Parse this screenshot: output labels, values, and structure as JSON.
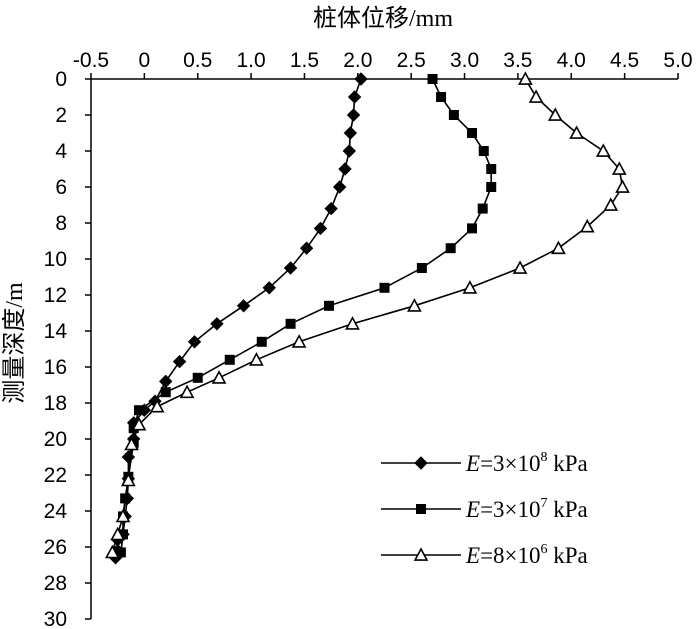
{
  "chart_data": {
    "type": "line",
    "xlabel": "桩体位移/mm",
    "ylabel": "测量深度/m",
    "xlim": [
      -0.5,
      5.0
    ],
    "ylim": [
      0,
      30
    ],
    "y_inverted": true,
    "x_axis_position": "top",
    "x_ticks": [
      "-0.5",
      "0",
      "0.5",
      "1.0",
      "1.5",
      "2.0",
      "2.5",
      "3.0",
      "3.5",
      "4.0",
      "4.5",
      "5.0"
    ],
    "y_ticks": [
      "0",
      "2",
      "4",
      "6",
      "8",
      "10",
      "12",
      "14",
      "16",
      "18",
      "20",
      "22",
      "24",
      "26",
      "28",
      "30"
    ],
    "grid": false,
    "legend_position": "bottom-right",
    "series": [
      {
        "name": "E=3×10^8 kPa",
        "legend": {
          "prefix": "E",
          "mid": "=3×10",
          "exp": "8",
          "suffix": " kPa"
        },
        "marker": "diamond",
        "x": [
          2.03,
          1.97,
          1.96,
          1.93,
          1.92,
          1.88,
          1.83,
          1.75,
          1.65,
          1.52,
          1.37,
          1.17,
          0.93,
          0.68,
          0.47,
          0.33,
          0.2,
          0.1,
          0.0,
          -0.1,
          -0.1,
          -0.15,
          -0.15,
          -0.16,
          -0.18,
          -0.2,
          -0.25,
          -0.25,
          -0.27
        ],
        "y": [
          0.0,
          1.0,
          2.0,
          3.0,
          4.0,
          5.0,
          6.0,
          7.2,
          8.3,
          9.4,
          10.5,
          11.6,
          12.6,
          13.6,
          14.6,
          15.7,
          16.8,
          17.9,
          18.4,
          19.1,
          20.0,
          21.0,
          22.2,
          23.3,
          24.3,
          25.3,
          25.6,
          26.2,
          26.6
        ]
      },
      {
        "name": "E=3×10^7 kPa",
        "legend": {
          "prefix": "E",
          "mid": "=3×10",
          "exp": "7",
          "suffix": " kPa"
        },
        "marker": "square",
        "x": [
          2.7,
          2.78,
          2.9,
          3.07,
          3.18,
          3.25,
          3.25,
          3.17,
          3.07,
          2.87,
          2.6,
          2.25,
          1.73,
          1.37,
          1.1,
          0.8,
          0.5,
          0.2,
          -0.05,
          -0.1,
          -0.1,
          -0.15,
          -0.18,
          -0.2,
          -0.2,
          -0.22
        ],
        "y": [
          0.0,
          1.0,
          2.0,
          3.0,
          4.0,
          5.0,
          6.0,
          7.2,
          8.3,
          9.4,
          10.5,
          11.6,
          12.6,
          13.6,
          14.6,
          15.6,
          16.6,
          17.4,
          18.4,
          19.4,
          20.2,
          22.1,
          23.3,
          24.3,
          25.3,
          26.3
        ]
      },
      {
        "name": "E=8×10^6 kPa",
        "legend": {
          "prefix": "E",
          "mid": "=8×10",
          "exp": "6",
          "suffix": " kPa"
        },
        "marker": "triangle",
        "x": [
          3.57,
          3.67,
          3.85,
          4.05,
          4.3,
          4.45,
          4.48,
          4.37,
          4.15,
          3.88,
          3.52,
          3.05,
          2.53,
          1.95,
          1.45,
          1.05,
          0.7,
          0.4,
          0.12,
          -0.05,
          -0.12,
          -0.15,
          -0.2,
          -0.25,
          -0.3
        ],
        "y": [
          0.0,
          1.0,
          2.0,
          3.0,
          4.0,
          5.0,
          6.0,
          7.0,
          8.2,
          9.4,
          10.5,
          11.6,
          12.6,
          13.6,
          14.6,
          15.6,
          16.6,
          17.4,
          18.2,
          19.2,
          20.3,
          22.3,
          24.3,
          25.3,
          26.3
        ]
      }
    ]
  }
}
